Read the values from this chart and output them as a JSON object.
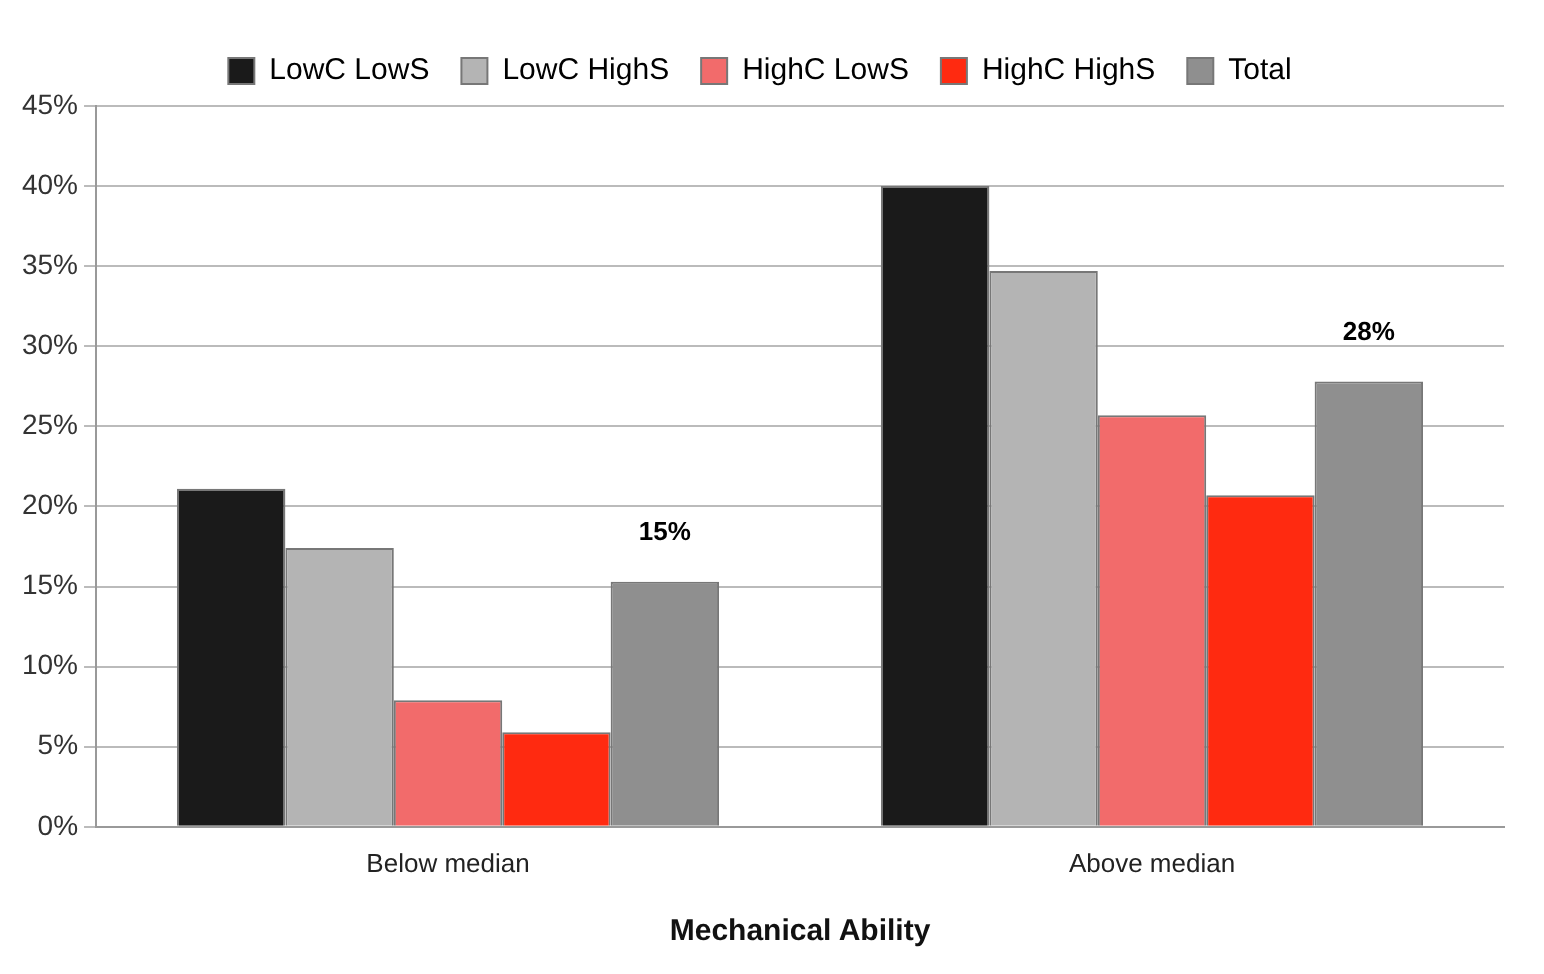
{
  "chart_data": {
    "type": "bar",
    "xlabel": "Mechanical Ability",
    "categories": [
      "Below median",
      "Above median"
    ],
    "series": [
      {
        "name": "LowC LowS",
        "color": "#1a1a1a",
        "values": [
          21.1,
          40.0
        ]
      },
      {
        "name": "LowC HighS",
        "color": "#b4b4b4",
        "values": [
          17.4,
          34.7
        ]
      },
      {
        "name": "HighC LowS",
        "color": "#f26b6b",
        "values": [
          7.9,
          25.7
        ]
      },
      {
        "name": "HighC HighS",
        "color": "#ff2a10",
        "values": [
          5.9,
          20.7
        ]
      },
      {
        "name": "Total",
        "color": "#8f8f8f",
        "values": [
          15.3,
          27.8
        ],
        "value_labels": [
          "15%",
          "28%"
        ]
      }
    ],
    "ylim": [
      0,
      45
    ],
    "yticks": [
      {
        "value": 0,
        "label": "0%"
      },
      {
        "value": 5,
        "label": "5%"
      },
      {
        "value": 10,
        "label": "10%"
      },
      {
        "value": 15,
        "label": "15%"
      },
      {
        "value": 20,
        "label": "20%"
      },
      {
        "value": 25,
        "label": "25%"
      },
      {
        "value": 30,
        "label": "30%"
      },
      {
        "value": 35,
        "label": "35%"
      },
      {
        "value": 40,
        "label": "40%"
      },
      {
        "value": 45,
        "label": "45%"
      }
    ],
    "grid": "y",
    "legend": "top"
  }
}
